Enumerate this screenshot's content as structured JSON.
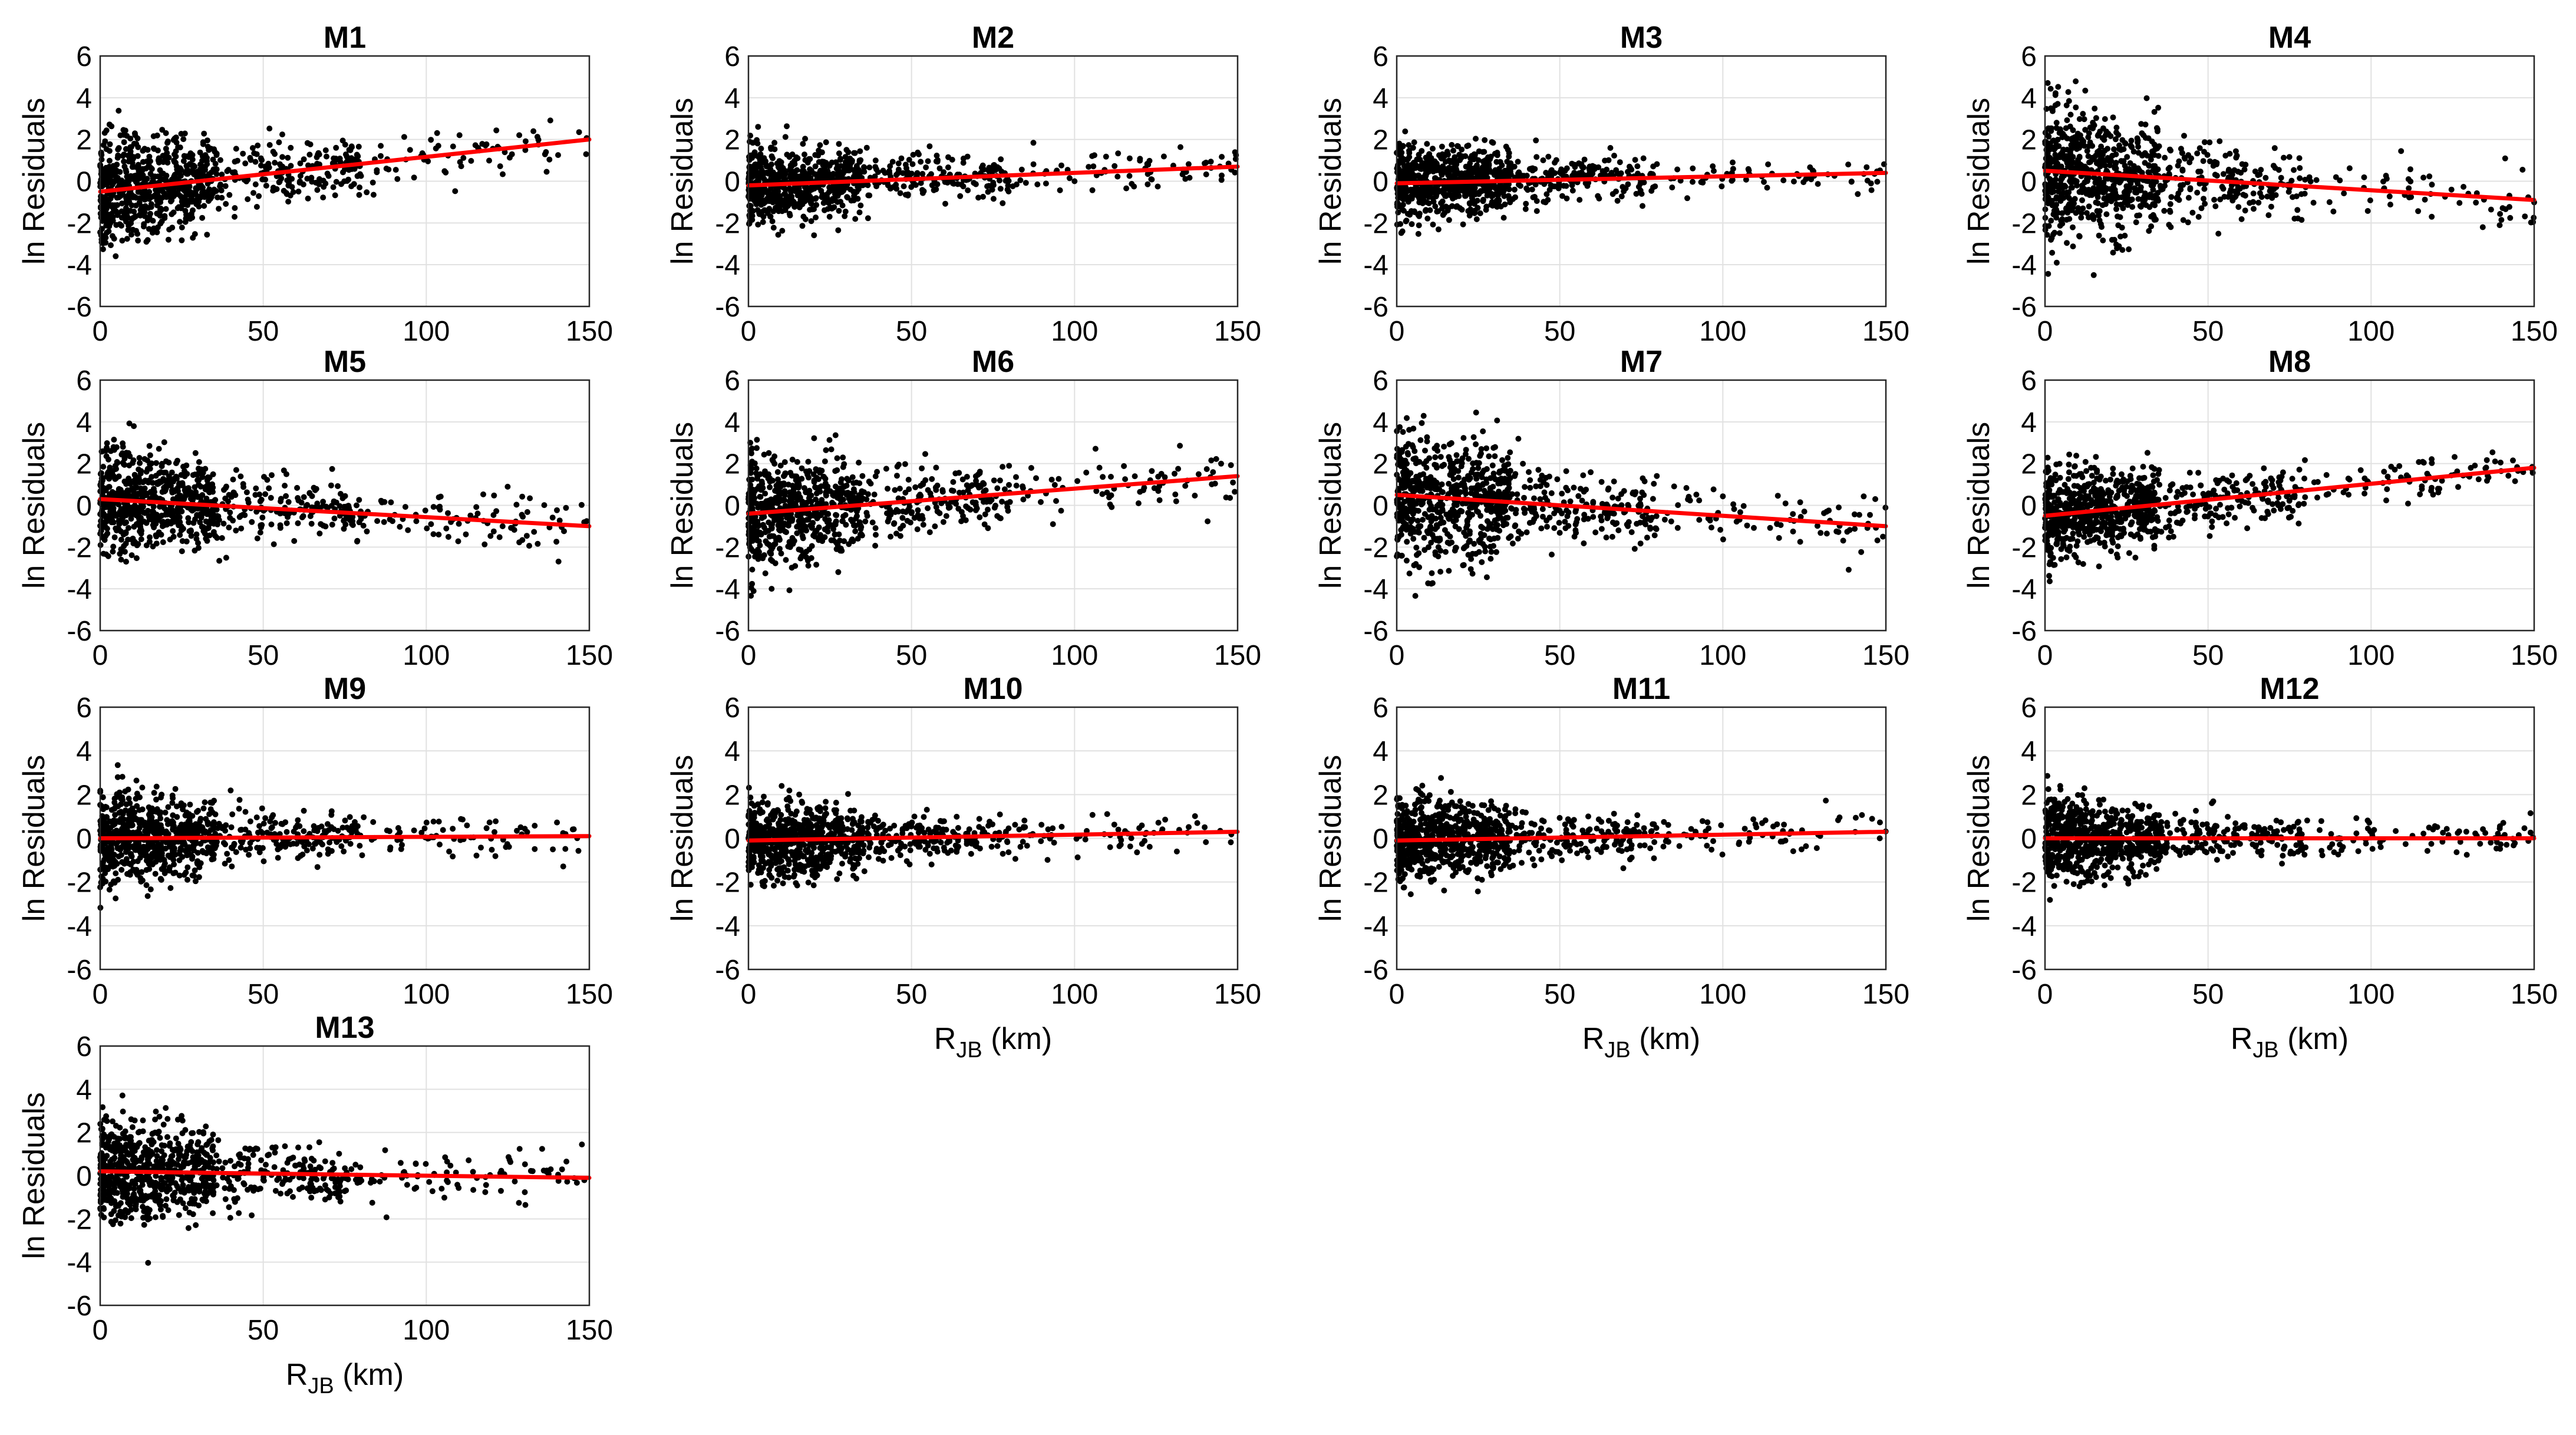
{
  "figure": {
    "y_axis_label": "ln Residuals",
    "x_axis_label_main": "R",
    "x_axis_label_sub": "JB",
    "x_axis_label_unit": " (km)",
    "colors": {
      "points": "#000000",
      "trend": "#ff0000",
      "grid": "#e1e1e1",
      "axes": "#262626"
    }
  },
  "chart_data": [
    {
      "type": "scatter",
      "title": "M1",
      "xlim": [
        0,
        150
      ],
      "ylim": [
        -6,
        6
      ],
      "xticks": [
        0,
        50,
        100,
        150
      ],
      "yticks": [
        -6,
        -4,
        -2,
        0,
        2,
        4,
        6
      ],
      "grid": true,
      "xlabel": "",
      "ylabel": "ln Residuals",
      "trend": {
        "x": [
          0,
          150
        ],
        "y": [
          -0.5,
          2.0
        ]
      },
      "scatter_profile": {
        "near_spread": 2.6,
        "far_spread": 1.1,
        "center": "trend"
      }
    },
    {
      "type": "scatter",
      "title": "M2",
      "xlim": [
        0,
        150
      ],
      "ylim": [
        -6,
        6
      ],
      "xticks": [
        0,
        50,
        100,
        150
      ],
      "yticks": [
        -6,
        -4,
        -2,
        0,
        2,
        4,
        6
      ],
      "grid": true,
      "xlabel": "",
      "ylabel": "ln Residuals",
      "trend": {
        "x": [
          0,
          150
        ],
        "y": [
          -0.2,
          0.7
        ]
      },
      "scatter_profile": {
        "near_spread": 1.7,
        "far_spread": 0.9,
        "center": "trend"
      }
    },
    {
      "type": "scatter",
      "title": "M3",
      "xlim": [
        0,
        150
      ],
      "ylim": [
        -6,
        6
      ],
      "xticks": [
        0,
        50,
        100,
        150
      ],
      "yticks": [
        -6,
        -4,
        -2,
        0,
        2,
        4,
        6
      ],
      "grid": true,
      "xlabel": "",
      "ylabel": "ln Residuals",
      "trend": {
        "x": [
          0,
          150
        ],
        "y": [
          -0.1,
          0.4
        ]
      },
      "scatter_profile": {
        "near_spread": 1.8,
        "far_spread": 0.9,
        "center": "trend"
      }
    },
    {
      "type": "scatter",
      "title": "M4",
      "xlim": [
        0,
        150
      ],
      "ylim": [
        -6,
        6
      ],
      "xticks": [
        0,
        50,
        100,
        150
      ],
      "yticks": [
        -6,
        -4,
        -2,
        0,
        2,
        4,
        6
      ],
      "grid": true,
      "xlabel": "",
      "ylabel": "ln Residuals",
      "trend": {
        "x": [
          0,
          150
        ],
        "y": [
          0.5,
          -0.9
        ]
      },
      "scatter_profile": {
        "near_spread": 3.2,
        "far_spread": 1.4,
        "center": "trend"
      }
    },
    {
      "type": "scatter",
      "title": "M5",
      "xlim": [
        0,
        150
      ],
      "ylim": [
        -6,
        6
      ],
      "xticks": [
        0,
        50,
        100,
        150
      ],
      "yticks": [
        -6,
        -4,
        -2,
        0,
        2,
        4,
        6
      ],
      "grid": true,
      "xlabel": "",
      "ylabel": "ln Residuals",
      "trend": {
        "x": [
          0,
          150
        ],
        "y": [
          0.3,
          -1.0
        ]
      },
      "scatter_profile": {
        "near_spread": 2.4,
        "far_spread": 1.1,
        "center": "trend"
      }
    },
    {
      "type": "scatter",
      "title": "M6",
      "xlim": [
        0,
        150
      ],
      "ylim": [
        -6,
        6
      ],
      "xticks": [
        0,
        50,
        100,
        150
      ],
      "yticks": [
        -6,
        -4,
        -2,
        0,
        2,
        4,
        6
      ],
      "grid": true,
      "xlabel": "",
      "ylabel": "ln Residuals",
      "trend": {
        "x": [
          0,
          150
        ],
        "y": [
          -0.4,
          1.4
        ]
      },
      "scatter_profile": {
        "near_spread": 2.6,
        "far_spread": 1.2,
        "center": "trend"
      }
    },
    {
      "type": "scatter",
      "title": "M7",
      "xlim": [
        0,
        150
      ],
      "ylim": [
        -6,
        6
      ],
      "xticks": [
        0,
        50,
        100,
        150
      ],
      "yticks": [
        -6,
        -4,
        -2,
        0,
        2,
        4,
        6
      ],
      "grid": true,
      "xlabel": "",
      "ylabel": "ln Residuals",
      "trend": {
        "x": [
          0,
          150
        ],
        "y": [
          0.5,
          -1.0
        ]
      },
      "scatter_profile": {
        "near_spread": 3.2,
        "far_spread": 1.4,
        "center": "trend"
      }
    },
    {
      "type": "scatter",
      "title": "M8",
      "xlim": [
        0,
        150
      ],
      "ylim": [
        -6,
        6
      ],
      "xticks": [
        0,
        50,
        100,
        150
      ],
      "yticks": [
        -6,
        -4,
        -2,
        0,
        2,
        4,
        6
      ],
      "grid": true,
      "xlabel": "",
      "ylabel": "ln Residuals",
      "trend": {
        "x": [
          0,
          150
        ],
        "y": [
          -0.5,
          1.8
        ]
      },
      "scatter_profile": {
        "near_spread": 2.2,
        "far_spread": 1.0,
        "center": "trend"
      }
    },
    {
      "type": "scatter",
      "title": "M9",
      "xlim": [
        0,
        150
      ],
      "ylim": [
        -6,
        6
      ],
      "xticks": [
        0,
        50,
        100,
        150
      ],
      "yticks": [
        -6,
        -4,
        -2,
        0,
        2,
        4,
        6
      ],
      "grid": true,
      "xlabel": "",
      "ylabel": "ln Residuals",
      "trend": {
        "x": [
          0,
          150
        ],
        "y": [
          0.0,
          0.1
        ]
      },
      "scatter_profile": {
        "near_spread": 2.1,
        "far_spread": 0.9,
        "center": "trend"
      }
    },
    {
      "type": "scatter",
      "title": "M10",
      "xlim": [
        0,
        150
      ],
      "ylim": [
        -6,
        6
      ],
      "xticks": [
        0,
        50,
        100,
        150
      ],
      "yticks": [
        -6,
        -4,
        -2,
        0,
        2,
        4,
        6
      ],
      "grid": true,
      "xlabel": "R_JB (km)",
      "ylabel": "ln Residuals",
      "trend": {
        "x": [
          0,
          150
        ],
        "y": [
          -0.1,
          0.3
        ]
      },
      "scatter_profile": {
        "near_spread": 1.8,
        "far_spread": 0.8,
        "center": "trend"
      }
    },
    {
      "type": "scatter",
      "title": "M11",
      "xlim": [
        0,
        150
      ],
      "ylim": [
        -6,
        6
      ],
      "xticks": [
        0,
        50,
        100,
        150
      ],
      "yticks": [
        -6,
        -4,
        -2,
        0,
        2,
        4,
        6
      ],
      "grid": true,
      "xlabel": "R_JB (km)",
      "ylabel": "ln Residuals",
      "trend": {
        "x": [
          0,
          150
        ],
        "y": [
          -0.1,
          0.3
        ]
      },
      "scatter_profile": {
        "near_spread": 1.8,
        "far_spread": 0.8,
        "center": "trend"
      }
    },
    {
      "type": "scatter",
      "title": "M12",
      "xlim": [
        0,
        150
      ],
      "ylim": [
        -6,
        6
      ],
      "xticks": [
        0,
        50,
        100,
        150
      ],
      "yticks": [
        -6,
        -4,
        -2,
        0,
        2,
        4,
        6
      ],
      "grid": true,
      "xlabel": "R_JB (km)",
      "ylabel": "ln Residuals",
      "trend": {
        "x": [
          0,
          150
        ],
        "y": [
          0.0,
          0.0
        ]
      },
      "scatter_profile": {
        "near_spread": 1.9,
        "far_spread": 0.8,
        "center": "trend"
      }
    },
    {
      "type": "scatter",
      "title": "M13",
      "xlim": [
        0,
        150
      ],
      "ylim": [
        -6,
        6
      ],
      "xticks": [
        0,
        50,
        100,
        150
      ],
      "yticks": [
        -6,
        -4,
        -2,
        0,
        2,
        4,
        6
      ],
      "grid": true,
      "xlabel": "R_JB (km)",
      "ylabel": "ln Residuals",
      "trend": {
        "x": [
          0,
          150
        ],
        "y": [
          0.2,
          -0.1
        ]
      },
      "scatter_profile": {
        "near_spread": 2.4,
        "far_spread": 1.1,
        "center": "trend"
      }
    }
  ]
}
